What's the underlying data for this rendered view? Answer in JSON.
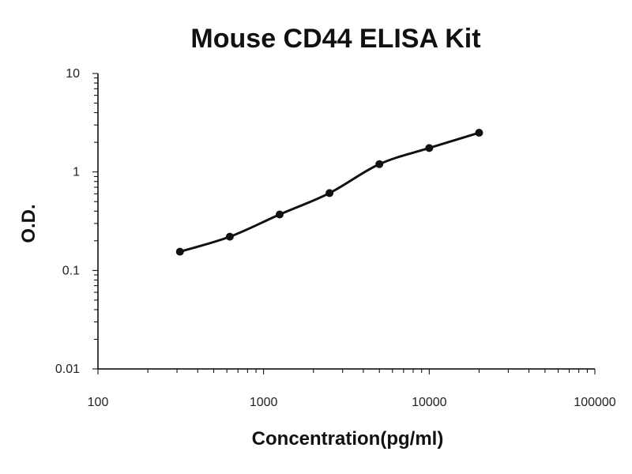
{
  "chart_data": {
    "type": "scatter",
    "title": "Mouse CD44 ELISA Kit",
    "xlabel": "Concentration(pg/ml)",
    "ylabel": "O.D.",
    "xscale": "log",
    "yscale": "log",
    "xlim": [
      100,
      100000
    ],
    "ylim": [
      0.01,
      10
    ],
    "x_tick_labels": [
      "100",
      "1000",
      "10000",
      "100000"
    ],
    "y_tick_labels": [
      "0.01",
      "0.1",
      "1",
      "10"
    ],
    "grid": false,
    "legend": "none",
    "series": [
      {
        "x": [
          312.5,
          625,
          1250,
          2500,
          5000,
          10000,
          20000
        ],
        "y": [
          0.155,
          0.22,
          0.37,
          0.61,
          1.2,
          1.75,
          2.5
        ],
        "marker": "circle",
        "fit_line": true
      }
    ]
  }
}
